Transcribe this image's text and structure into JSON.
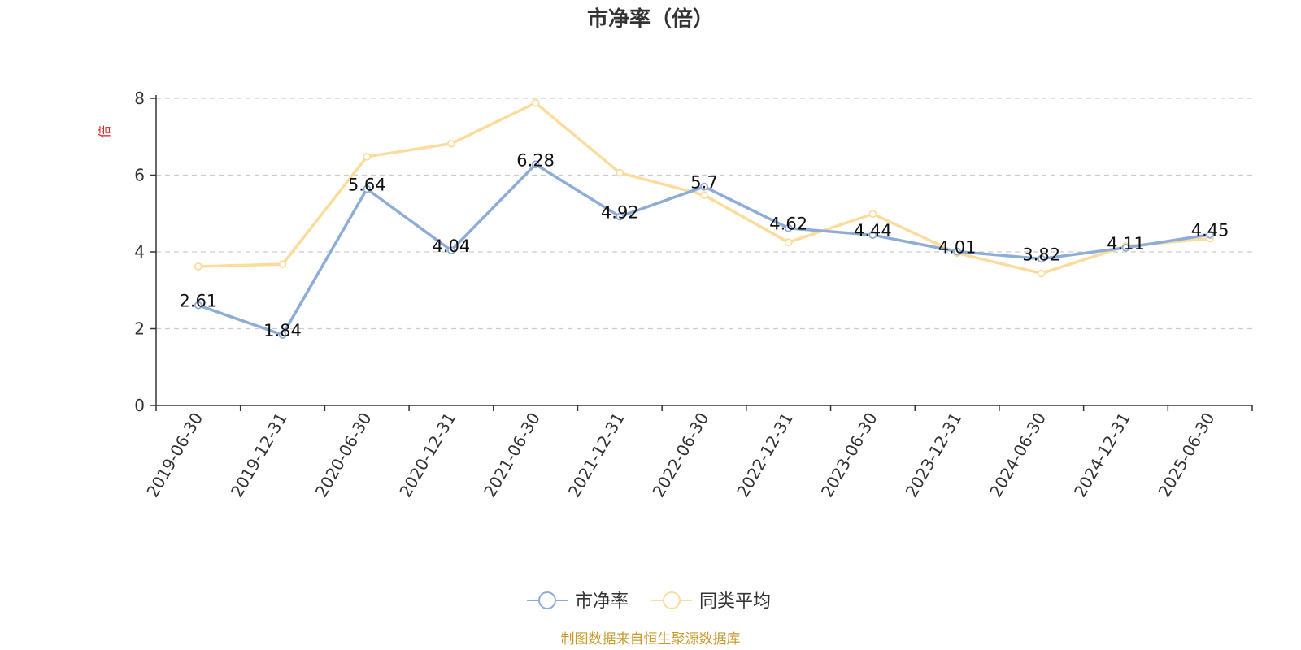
{
  "chart_data": {
    "type": "line",
    "title": "市净率（倍）",
    "ylabel": "倍",
    "xlabel": "",
    "ylim": [
      0,
      8
    ],
    "yticks": [
      0,
      2,
      4,
      6,
      8
    ],
    "grid": true,
    "legend_position": "bottom-center",
    "categories": [
      "2019-06-30",
      "2019-12-31",
      "2020-06-30",
      "2020-12-31",
      "2021-06-30",
      "2021-12-31",
      "2022-06-30",
      "2022-12-31",
      "2023-06-30",
      "2023-12-31",
      "2024-06-30",
      "2024-12-31",
      "2025-06-30"
    ],
    "series": [
      {
        "name": "市净率",
        "color": "#8eacd8",
        "values": [
          2.61,
          1.84,
          5.64,
          4.04,
          6.28,
          4.92,
          5.7,
          4.62,
          4.44,
          4.01,
          3.82,
          4.11,
          4.45
        ],
        "labels": [
          "2.61",
          "1.84",
          "5.64",
          "4.04",
          "6.28",
          "4.92",
          "5.7",
          "4.62",
          "4.44",
          "4.01",
          "3.82",
          "4.11",
          "4.45"
        ]
      },
      {
        "name": "同类平均",
        "color": "#fcdc9c",
        "values": [
          3.62,
          3.68,
          6.48,
          6.82,
          7.88,
          6.06,
          5.48,
          4.25,
          4.99,
          3.97,
          3.44,
          4.15,
          4.35
        ]
      }
    ],
    "source": "制图数据来自恒生聚源数据库"
  }
}
